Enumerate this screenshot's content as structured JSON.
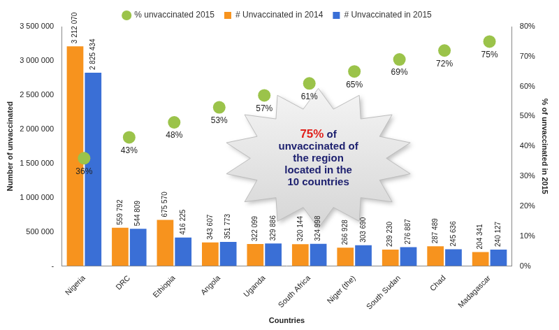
{
  "chart_data": {
    "type": "bar",
    "categories": [
      "Nigeria",
      "DRC",
      "Ethiopia",
      "Angola",
      "Uganda",
      "South Africa",
      "Niger (the)",
      "South Sudan",
      "Chad",
      "Madagascar"
    ],
    "series": [
      {
        "name": "# Unvaccinated in 2014",
        "type": "bar",
        "color": "#f7931e",
        "values": [
          3212070,
          559792,
          675570,
          343607,
          322099,
          320144,
          266928,
          239230,
          287489,
          204341
        ],
        "value_labels": [
          "3 212 070",
          "559 792",
          "675 570",
          "343 607",
          "322 099",
          "320 144",
          "266 928",
          "239 230",
          "287 489",
          "204 341"
        ]
      },
      {
        "name": "# Unvaccinated in 2015",
        "type": "bar",
        "color": "#3a6fd6",
        "values": [
          2825434,
          544809,
          416225,
          351773,
          329886,
          324998,
          303690,
          276887,
          245636,
          240127
        ],
        "value_labels": [
          "2 825 434",
          "544 809",
          "416 225",
          "351 773",
          "329 886",
          "324 998",
          "303 690",
          "276 887",
          "245 636",
          "240 127"
        ]
      },
      {
        "name": "% unvaccinated 2015",
        "type": "scatter",
        "axis": "y2",
        "marker": "circle",
        "color": "#9bc34a",
        "values": [
          36,
          43,
          48,
          53,
          57,
          61,
          65,
          69,
          72,
          75
        ],
        "value_labels": [
          "36%",
          "43%",
          "48%",
          "53%",
          "57%",
          "61%",
          "65%",
          "69%",
          "72%",
          "75%"
        ]
      }
    ],
    "x_label": "Countries",
    "y_label": "Number of unvaccinated",
    "y2_label": "% of unvaccinated in 2015",
    "ylim": [
      0,
      3500000
    ],
    "yticks": [
      {
        "value": 0,
        "label": "-"
      },
      {
        "value": 500000,
        "label": "500 000"
      },
      {
        "value": 1000000,
        "label": "1 000 000"
      },
      {
        "value": 1500000,
        "label": "1 500 000"
      },
      {
        "value": 2000000,
        "label": "2 000 000"
      },
      {
        "value": 2500000,
        "label": "2 500 000"
      },
      {
        "value": 3000000,
        "label": "3 000 000"
      },
      {
        "value": 3500000,
        "label": "3 500 000"
      }
    ],
    "y2lim": [
      0,
      80
    ],
    "y2ticks": [
      {
        "value": 0,
        "label": "0%"
      },
      {
        "value": 10,
        "label": "10%"
      },
      {
        "value": 20,
        "label": "20%"
      },
      {
        "value": 30,
        "label": "30%"
      },
      {
        "value": 40,
        "label": "40%"
      },
      {
        "value": 50,
        "label": "50%"
      },
      {
        "value": 60,
        "label": "60%"
      },
      {
        "value": 70,
        "label": "70%"
      },
      {
        "value": 80,
        "label": "80%"
      }
    ],
    "annotations": [
      {
        "highlight": "75%",
        "text": [
          "75% of",
          "unvaccinated of",
          "the region",
          "located in the",
          "10 countries"
        ]
      }
    ],
    "grid": false,
    "legend": "top",
    "data_labels": true
  }
}
